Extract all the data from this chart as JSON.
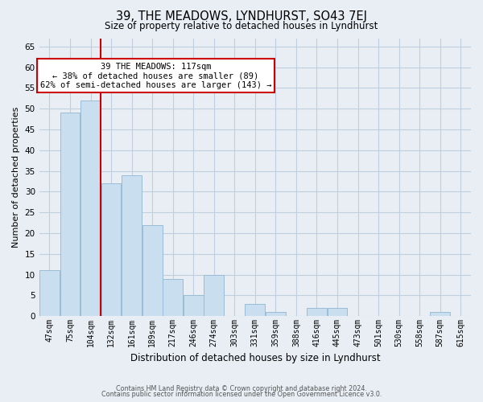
{
  "title": "39, THE MEADOWS, LYNDHURST, SO43 7EJ",
  "subtitle": "Size of property relative to detached houses in Lyndhurst",
  "xlabel": "Distribution of detached houses by size in Lyndhurst",
  "ylabel": "Number of detached properties",
  "bar_labels": [
    "47sqm",
    "75sqm",
    "104sqm",
    "132sqm",
    "161sqm",
    "189sqm",
    "217sqm",
    "246sqm",
    "274sqm",
    "303sqm",
    "331sqm",
    "359sqm",
    "388sqm",
    "416sqm",
    "445sqm",
    "473sqm",
    "501sqm",
    "530sqm",
    "558sqm",
    "587sqm",
    "615sqm"
  ],
  "bar_values": [
    11,
    49,
    52,
    32,
    34,
    22,
    9,
    5,
    10,
    0,
    3,
    1,
    0,
    2,
    2,
    0,
    0,
    0,
    0,
    1,
    0
  ],
  "bar_color": "#c9dff0",
  "bar_edge_color": "#9bbcd6",
  "property_line_x": 2.5,
  "property_line_color": "#cc0000",
  "annotation_text": "39 THE MEADOWS: 117sqm\n← 38% of detached houses are smaller (89)\n62% of semi-detached houses are larger (143) →",
  "annotation_box_color": "white",
  "annotation_box_edge_color": "#cc0000",
  "ylim": [
    0,
    67
  ],
  "yticks": [
    0,
    5,
    10,
    15,
    20,
    25,
    30,
    35,
    40,
    45,
    50,
    55,
    60,
    65
  ],
  "footer_line1": "Contains HM Land Registry data © Crown copyright and database right 2024.",
  "footer_line2": "Contains public sector information licensed under the Open Government Licence v3.0.",
  "bg_color": "#e8eef4",
  "plot_bg_color": "#e8eef4",
  "grid_color": "#c0cfe0"
}
